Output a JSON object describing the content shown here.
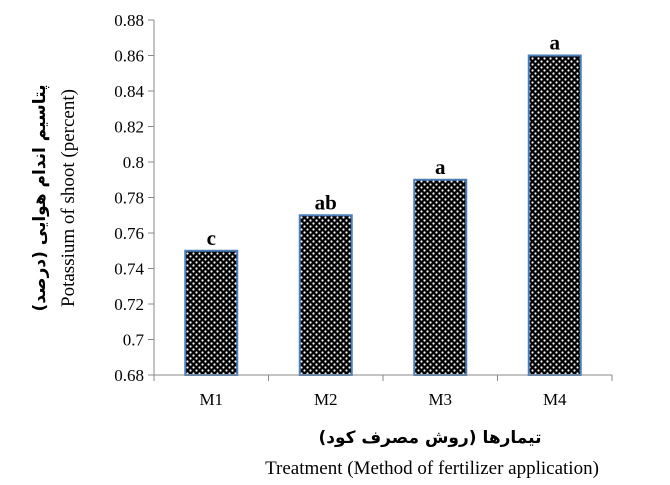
{
  "chart_data": {
    "type": "bar",
    "categories": [
      "M1",
      "M2",
      "M3",
      "M4"
    ],
    "values": [
      0.75,
      0.77,
      0.79,
      0.86
    ],
    "significance_letters": [
      "c",
      "ab",
      "a",
      "a"
    ],
    "ylabel_en": "Potassium of shoot (percent)",
    "ylabel_fa": "پتاسیم اندام هوایی (درصد)",
    "xlabel_fa": "تیمارها (روش مصرف کود)",
    "xlabel_en": "Treatment (Method of fertilizer application)",
    "ylim": [
      0.68,
      0.88
    ],
    "yticks": [
      "0.68",
      "0.7",
      "0.72",
      "0.74",
      "0.76",
      "0.78",
      "0.8",
      "0.82",
      "0.84",
      "0.86",
      "0.88"
    ],
    "grid": false,
    "bar_fill": "#000000",
    "bar_pattern": "white dots",
    "bar_edge_color": "#4a7ebb"
  }
}
